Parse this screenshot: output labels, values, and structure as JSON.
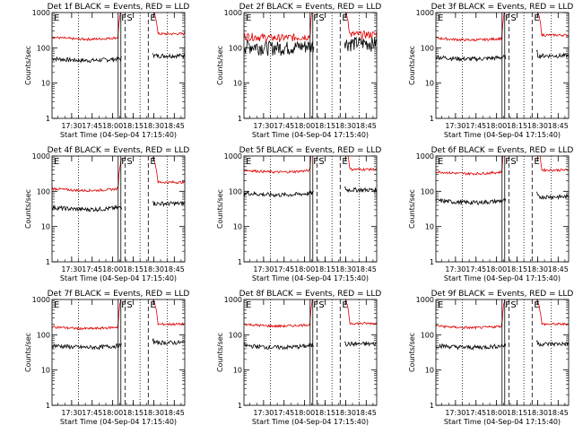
{
  "chart_data": {
    "type": "line",
    "y_scale": "log",
    "ylim": [
      1,
      1000
    ],
    "y_ticks": [
      1,
      10,
      100,
      1000
    ],
    "y_tick_labels": [
      "1",
      "10",
      "100",
      "1000"
    ],
    "x_start_time": "17:15:40",
    "xlim_minutes": [
      0,
      97
    ],
    "x_ticks": [
      "17:30",
      "17:45",
      "18:00",
      "18:15",
      "18:30",
      "18:45"
    ],
    "xlabel": "Start Time (04-Sep-04 17:15:40)",
    "ylabel": "Counts/sec",
    "grid": false,
    "markers": [
      {
        "label": "E",
        "time": "17:15:40",
        "style": "text"
      },
      {
        "label": "F",
        "time": "18:05",
        "style": "double-solid"
      },
      {
        "label": "S",
        "time": "18:09",
        "style": "dashed"
      },
      {
        "label": "E",
        "time": "18:26",
        "style": "dashed"
      }
    ],
    "dotted_lines": [
      "17:35",
      "18:20",
      "18:40"
    ],
    "gap": [
      "18:07",
      "18:29"
    ],
    "series_colors": {
      "events": "#000000",
      "lld": "#e00000"
    },
    "panels": [
      {
        "title": "Det 1f BLACK = Events, RED = LLD",
        "events_level": 50,
        "lld_level": 200,
        "events_after": 60,
        "lld_after": 250
      },
      {
        "title": "Det 2f BLACK = Events, RED = LLD",
        "events_level": 120,
        "lld_level": 220,
        "events_after": 140,
        "lld_after": 240
      },
      {
        "title": "Det 3f BLACK = Events, RED = LLD",
        "events_level": 55,
        "lld_level": 190,
        "events_after": 60,
        "lld_after": 230
      },
      {
        "title": "Det 4f BLACK = Events, RED = LLD",
        "events_level": 35,
        "lld_level": 120,
        "events_after": 45,
        "lld_after": 180
      },
      {
        "title": "Det 5f BLACK = Events, RED = LLD",
        "events_level": 90,
        "lld_level": 400,
        "events_after": 110,
        "lld_after": 420
      },
      {
        "title": "Det 6f BLACK = Events, RED = LLD",
        "events_level": 55,
        "lld_level": 360,
        "events_after": 70,
        "lld_after": 400
      },
      {
        "title": "Det 7f BLACK = Events, RED = LLD",
        "events_level": 50,
        "lld_level": 170,
        "events_after": 60,
        "lld_after": 200
      },
      {
        "title": "Det 8f BLACK = Events, RED = LLD",
        "events_level": 50,
        "lld_level": 200,
        "events_after": 55,
        "lld_after": 210
      },
      {
        "title": "Det 9f BLACK = Events, RED = LLD",
        "events_level": 50,
        "lld_level": 180,
        "events_after": 55,
        "lld_after": 200
      }
    ]
  }
}
